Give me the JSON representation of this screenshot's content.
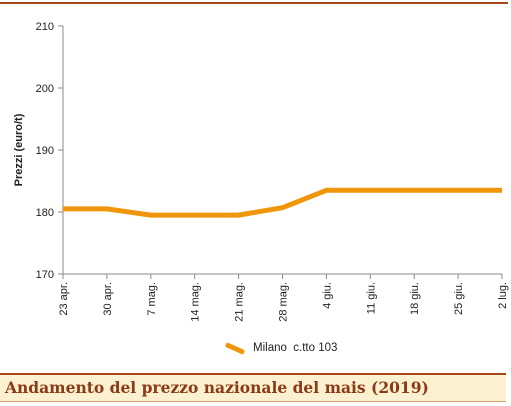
{
  "caption": "Andamento del prezzo nazionale del mais (2019)",
  "chart_data": {
    "type": "line",
    "title": "",
    "xlabel": "",
    "ylabel": "Prezzi (euro/t)",
    "categories": [
      "23 apr.",
      "30 apr.",
      "7 mag.",
      "14 mag.",
      "21 mag.",
      "28 mag.",
      "4 giu.",
      "11 giu.",
      "18 giu.",
      "25 giu.",
      "2 lug."
    ],
    "series": [
      {
        "name": "Milano  c.tto 103",
        "values": [
          180.5,
          180.5,
          179.5,
          179.5,
          179.5,
          180.7,
          183.5,
          183.5,
          183.5,
          183.5,
          183.5
        ]
      }
    ],
    "ylim": [
      170,
      210
    ],
    "yticks": [
      170,
      180,
      190,
      200,
      210
    ],
    "grid": false,
    "legend": "bottom",
    "colors": {
      "series": "#f0960a",
      "axis": "#888888"
    }
  }
}
